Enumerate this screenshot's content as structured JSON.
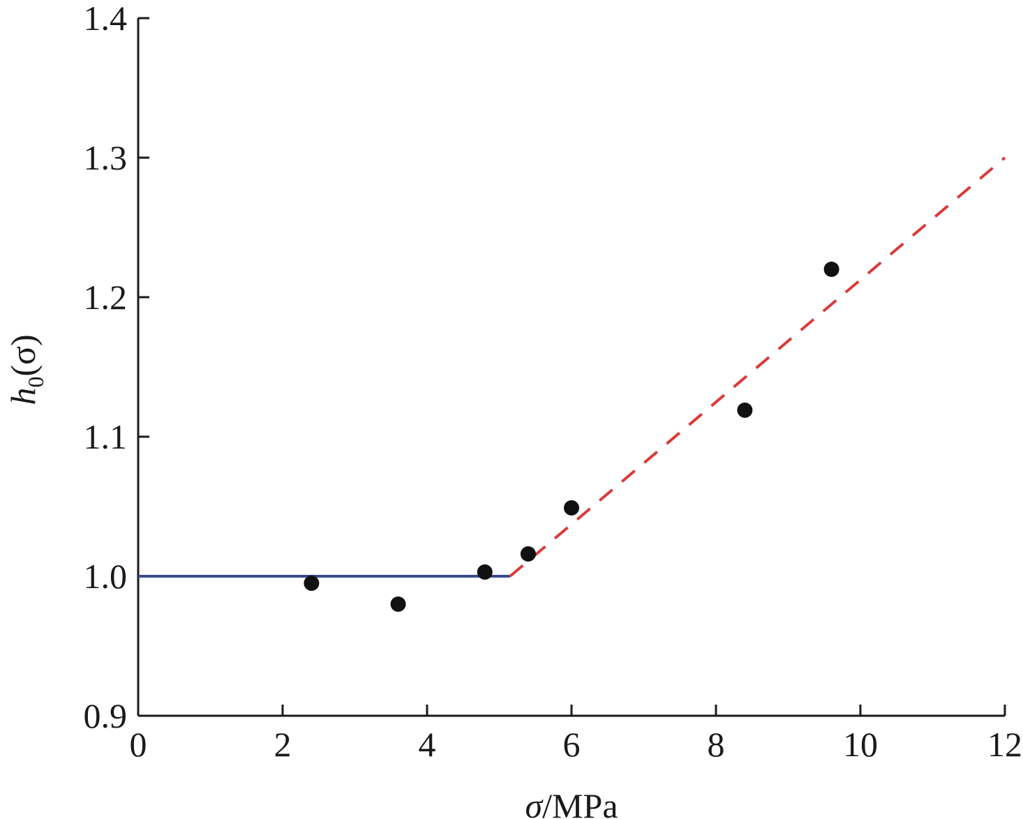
{
  "chart_data": {
    "type": "scatter",
    "xlabel": {
      "symbol": "σ",
      "unit": "/MPa"
    },
    "ylabel": {
      "base": "h",
      "subscript": "0",
      "args": "(σ)"
    },
    "xlim": [
      0,
      12
    ],
    "ylim": [
      0.9,
      1.4
    ],
    "xticks": [
      "0",
      "2",
      "4",
      "6",
      "8",
      "10",
      "12"
    ],
    "yticks": [
      "0.9",
      "1.0",
      "1.1",
      "1.2",
      "1.3",
      "1.4"
    ],
    "grid": false,
    "series": [
      {
        "type": "scatter",
        "color": "#111111",
        "points": [
          {
            "x": 2.4,
            "y": 0.995
          },
          {
            "x": 3.6,
            "y": 0.98
          },
          {
            "x": 4.8,
            "y": 1.003
          },
          {
            "x": 5.4,
            "y": 1.016
          },
          {
            "x": 6.0,
            "y": 1.049
          },
          {
            "x": 8.4,
            "y": 1.119
          },
          {
            "x": 9.6,
            "y": 1.22
          }
        ]
      },
      {
        "type": "line",
        "style": "solid",
        "color": "#3a4a8c",
        "points": [
          {
            "x": 0,
            "y": 1.0
          },
          {
            "x": 5.15,
            "y": 1.0
          }
        ]
      },
      {
        "type": "line",
        "style": "dashed",
        "color": "#d93a3a",
        "points": [
          {
            "x": 5.15,
            "y": 1.0
          },
          {
            "x": 12,
            "y": 1.3
          }
        ]
      }
    ]
  }
}
